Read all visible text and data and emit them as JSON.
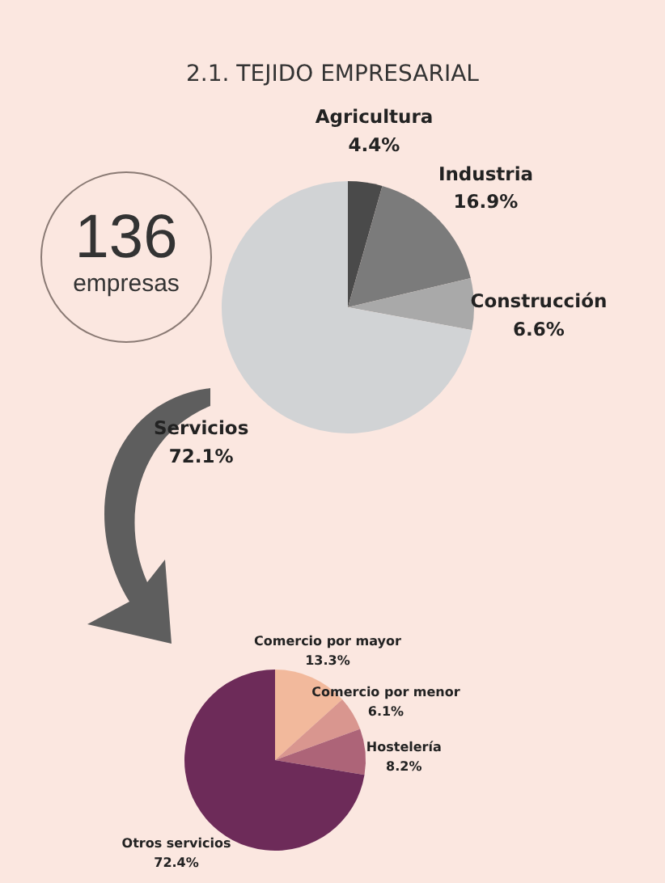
{
  "chart_data": [
    {
      "type": "pie",
      "title": "2.1. TEJIDO EMPRESARIAL",
      "annotations": [
        "136",
        "empresas"
      ],
      "categories": [
        "Agricultura",
        "Industria",
        "Construcción",
        "Servicios"
      ],
      "values": [
        4.4,
        16.9,
        6.6,
        72.1
      ],
      "value_labels": [
        "4.4%",
        "16.9%",
        "6.6%",
        "72.1%"
      ],
      "colors": [
        "#4a4a4a",
        "#7b7b7b",
        "#a9a9a9",
        "#d1d3d5"
      ]
    },
    {
      "type": "pie",
      "categories": [
        "Comercio por mayor",
        "Comercio por menor",
        "Hostelería",
        "Otros servicios"
      ],
      "values": [
        13.3,
        6.1,
        8.2,
        72.4
      ],
      "value_labels": [
        "13.3%",
        "6.1%",
        "8.2%",
        "72.4%"
      ],
      "colors": [
        "#f2b99c",
        "#d9968f",
        "#ad6478",
        "#6d2b59"
      ]
    }
  ]
}
